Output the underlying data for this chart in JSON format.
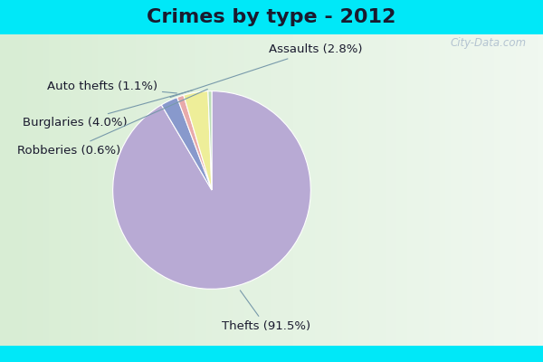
{
  "title": "Crimes by type - 2012",
  "labels": [
    "Thefts",
    "Assaults",
    "Auto thefts",
    "Burglaries",
    "Robberies"
  ],
  "values": [
    91.5,
    2.8,
    1.1,
    4.0,
    0.6
  ],
  "colors": [
    "#b8aad4",
    "#8899cc",
    "#e8aaaa",
    "#eeee99",
    "#bbddb8"
  ],
  "label_texts": [
    "Thefts (91.5%)",
    "Assaults (2.8%)",
    "Auto thefts (1.1%)",
    "Burglaries (4.0%)",
    "Robberies (0.6%)"
  ],
  "background_cyan": "#00e8f8",
  "background_main": "#dff0dc",
  "title_fontsize": 16,
  "label_fontsize": 9.5,
  "watermark": "City-Data.com"
}
